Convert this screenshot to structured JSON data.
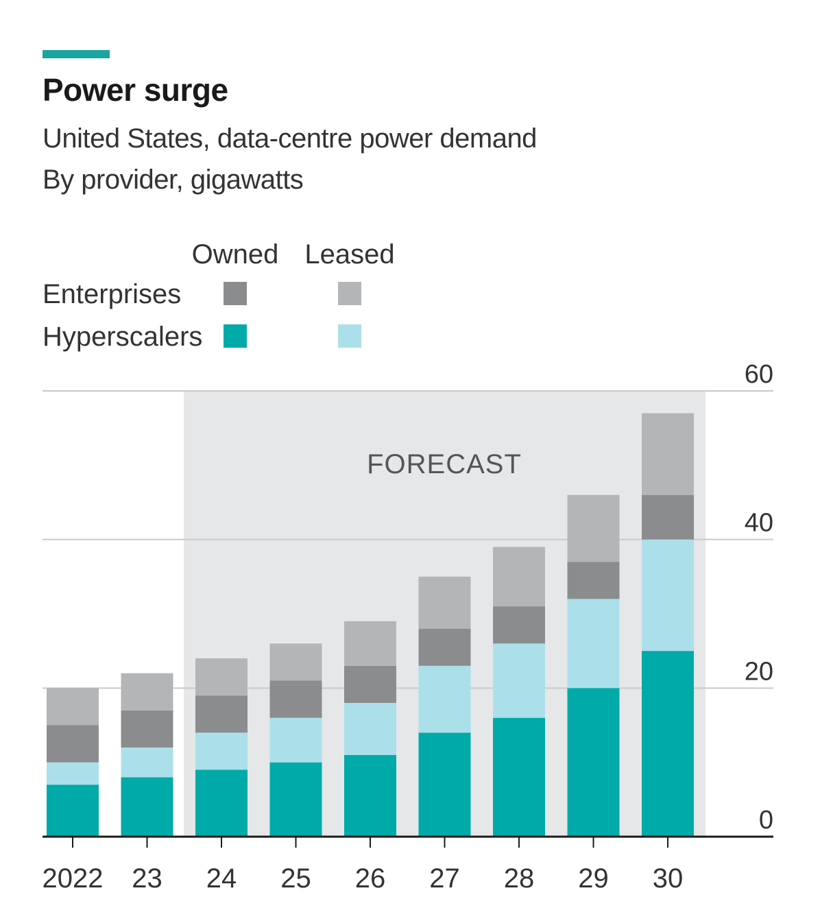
{
  "chart_data": {
    "type": "bar",
    "stacked": true,
    "title": "Power surge",
    "subtitle": [
      "United States, data-centre power demand",
      "By provider, gigawatts"
    ],
    "categories": [
      "2022",
      "23",
      "24",
      "25",
      "26",
      "27",
      "28",
      "29",
      "30"
    ],
    "series": [
      {
        "name": "Hyperscalers Owned",
        "color": "#00aaa8",
        "values": [
          7,
          8,
          9,
          10,
          11,
          14,
          16,
          20,
          25
        ]
      },
      {
        "name": "Hyperscalers Leased",
        "color": "#abe0ea",
        "values": [
          3,
          4,
          5,
          6,
          7,
          9,
          10,
          12,
          15
        ]
      },
      {
        "name": "Enterprises Owned",
        "color": "#8b8c8e",
        "values": [
          5,
          5,
          5,
          5,
          5,
          5,
          5,
          5,
          6
        ]
      },
      {
        "name": "Enterprises Leased",
        "color": "#b4b5b7",
        "values": [
          5,
          5,
          5,
          5,
          6,
          7,
          8,
          9,
          11
        ]
      }
    ],
    "legend": {
      "columns": [
        "Owned",
        "Leased"
      ],
      "rows": [
        "Enterprises",
        "Hyperscalers"
      ],
      "placement": "top-left"
    },
    "ylim": [
      0,
      60
    ],
    "yticks": [
      "0",
      "20",
      "40",
      "60"
    ],
    "yaxis_side": "right",
    "annotation": "FORECAST",
    "forecast_from": "24",
    "grid": true,
    "xlabel": "",
    "ylabel": ""
  }
}
